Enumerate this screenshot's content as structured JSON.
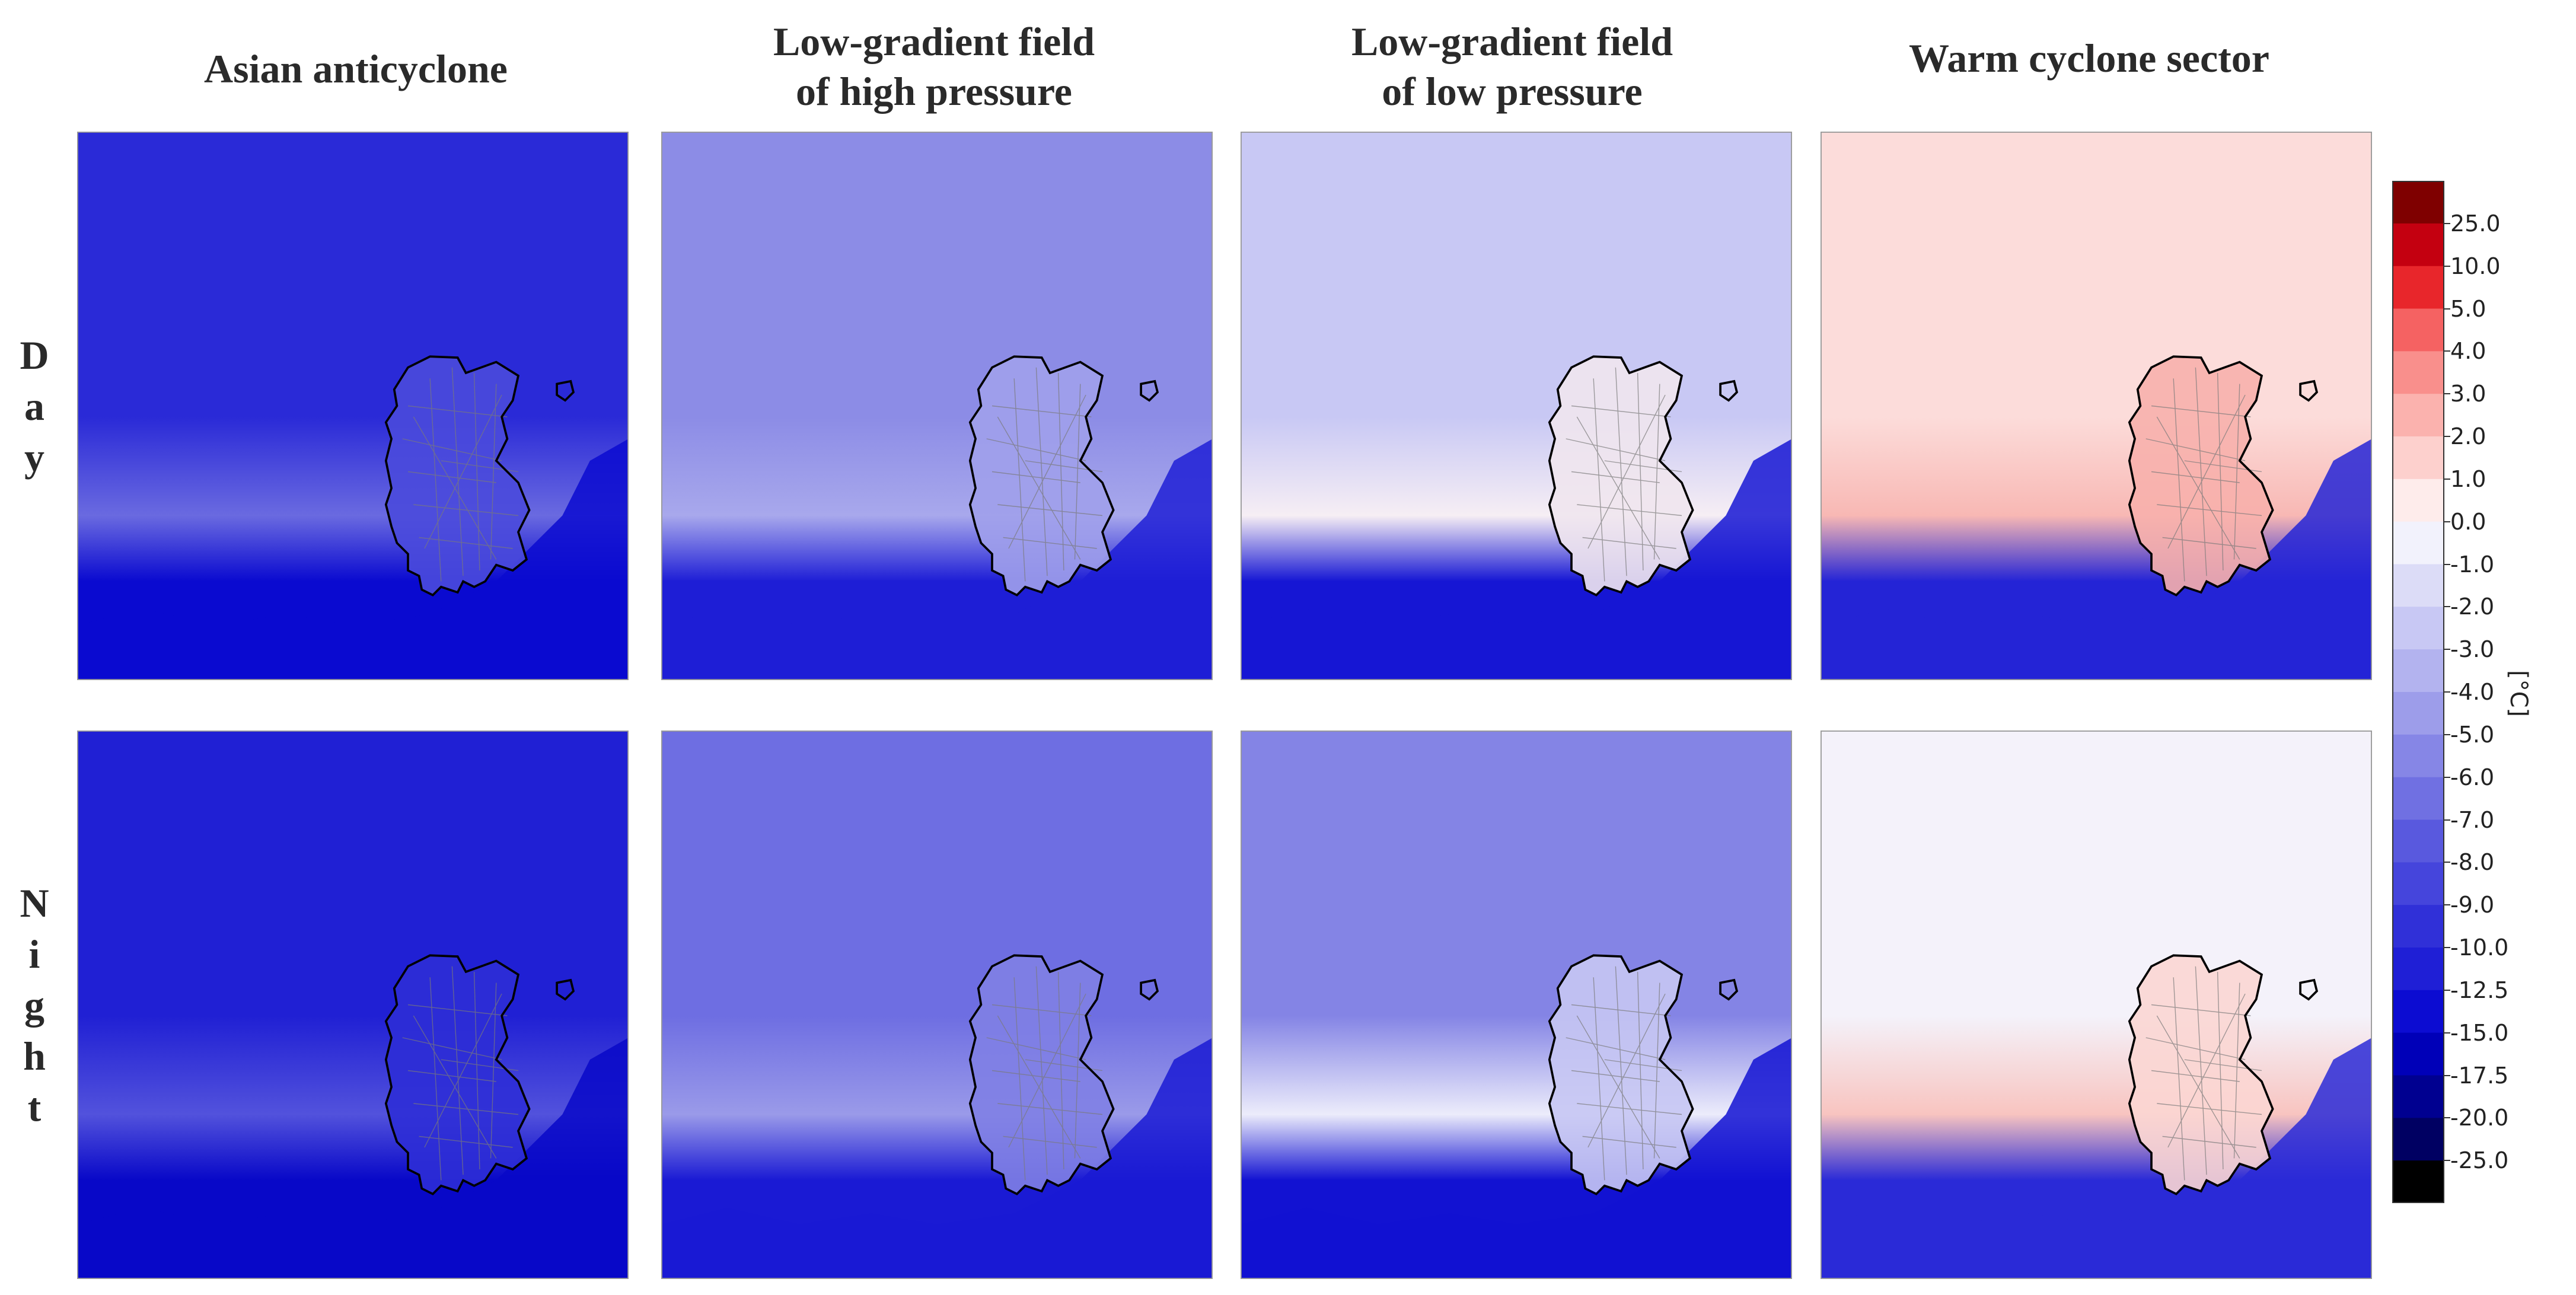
{
  "figure": {
    "column_titles": [
      "Asian anticyclone",
      "Low-gradient field\nof high pressure",
      "Low-gradient field\nof low pressure",
      "Warm cyclone sector"
    ],
    "row_labels": [
      [
        "D",
        "a",
        "y"
      ],
      [
        "N",
        "i",
        "g",
        "h",
        "t"
      ]
    ]
  },
  "chart_data": {
    "type": "heatmap",
    "description_kind": "spatial temperature anomaly maps with city outline",
    "columns": [
      "Asian anticyclone",
      "Low-gradient field of high pressure",
      "Low-gradient field of low pressure",
      "Warm cyclone sector"
    ],
    "rows": [
      "Day",
      "Night"
    ],
    "colorbar": {
      "unit": "[°C]",
      "tick_labels": [
        "25.0",
        "10.0",
        "5.0",
        "4.0",
        "3.0",
        "2.0",
        "1.0",
        "0.0",
        "-1.0",
        "-2.0",
        "-3.0",
        "-4.0",
        "-5.0",
        "-6.0",
        "-7.0",
        "-8.0",
        "-9.0",
        "-10.0",
        "-12.5",
        "-15.0",
        "-17.5",
        "-20.0",
        "-25.0"
      ],
      "levels_top_to_bottom": [
        {
          "value": "above 25.0",
          "color": "#7f0000"
        },
        {
          "value": "10.0 to 25.0",
          "color": "#c40010"
        },
        {
          "value": "5.0 to 10.0",
          "color": "#e8262b"
        },
        {
          "value": "4.0 to 5.0",
          "color": "#f56262"
        },
        {
          "value": "3.0 to 4.0",
          "color": "#f98f8c"
        },
        {
          "value": "2.0 to 3.0",
          "color": "#fbb2ae"
        },
        {
          "value": "1.0 to 2.0",
          "color": "#fdd0cd"
        },
        {
          "value": "0.0 to 1.0",
          "color": "#feeceb"
        },
        {
          "value": "-1.0 to 0.0",
          "color": "#f2f2fc"
        },
        {
          "value": "-2.0 to -1.0",
          "color": "#dcdcf7"
        },
        {
          "value": "-3.0 to -2.0",
          "color": "#c8c8f4"
        },
        {
          "value": "-4.0 to -3.0",
          "color": "#b3b3ef"
        },
        {
          "value": "-5.0 to -4.0",
          "color": "#9d9dea"
        },
        {
          "value": "-6.0 to -5.0",
          "color": "#8686e6"
        },
        {
          "value": "-7.0 to -6.0",
          "color": "#7070e2"
        },
        {
          "value": "-8.0 to -7.0",
          "color": "#5959de"
        },
        {
          "value": "-9.0 to -8.0",
          "color": "#4545dc"
        },
        {
          "value": "-10.0 to -9.0",
          "color": "#3030d8"
        },
        {
          "value": "-12.5 to -10.0",
          "color": "#1f1fd6"
        },
        {
          "value": "-15.0 to -12.5",
          "color": "#0c0cd2"
        },
        {
          "value": "-17.5 to -15.0",
          "color": "#0000b8"
        },
        {
          "value": "-20.0 to -17.5",
          "color": "#000090"
        },
        {
          "value": "-25.0 to -20.0",
          "color": "#000062"
        },
        {
          "value": "below -25.0",
          "color": "#000000"
        }
      ]
    },
    "panels": [
      {
        "row": "Day",
        "column": "Asian anticyclone",
        "north_level": "-10.0 to -9.0",
        "north_color": "#2a2ad7",
        "band_color": "#6a6ae0",
        "south_color": "#0a0ad0",
        "city_color": "#4a4adc"
      },
      {
        "row": "Day",
        "column": "Low-gradient field of high pressure",
        "north_level": "-6.0 to -5.0",
        "north_color": "#8c8ce6",
        "band_color": "#a8a8ec",
        "south_color": "#1e1ed6",
        "city_color": "#a0a0eb"
      },
      {
        "row": "Day",
        "column": "Low-gradient field of low pressure",
        "north_level": "-3.0 to -2.0",
        "north_color": "#c8c8f4",
        "band_color": "#f6eef4",
        "south_color": "#1616d4",
        "city_color": "#f0e6ee"
      },
      {
        "row": "Day",
        "column": "Warm cyclone sector",
        "north_level": "1.0 to 2.0",
        "north_color": "#fcdcda",
        "band_color": "#f8b8b4",
        "south_color": "#2424d6",
        "city_color": "#f7b0ac"
      },
      {
        "row": "Night",
        "column": "Asian anticyclone",
        "north_level": "-12.5 to -10.0",
        "north_color": "#2020d4",
        "band_color": "#5252dc",
        "south_color": "#0808c8",
        "city_color": "#2e2ed6"
      },
      {
        "row": "Night",
        "column": "Low-gradient field of high pressure",
        "north_level": "-7.0 to -6.0",
        "north_color": "#6e6ee2",
        "band_color": "#9a9ae9",
        "south_color": "#1a1ad4",
        "city_color": "#8080e4"
      },
      {
        "row": "Night",
        "column": "Low-gradient field of low pressure",
        "north_level": "-6.0 to -5.0",
        "north_color": "#8484e5",
        "band_color": "#ececfb",
        "south_color": "#1212d2",
        "city_color": "#c6c6f3"
      },
      {
        "row": "Night",
        "column": "Warm cyclone sector",
        "north_level": "-1.0 to 0.0",
        "north_color": "#f4f2fa",
        "band_color": "#f8c4c0",
        "south_color": "#2a2ad7",
        "city_color": "#fbd6d3"
      }
    ]
  }
}
